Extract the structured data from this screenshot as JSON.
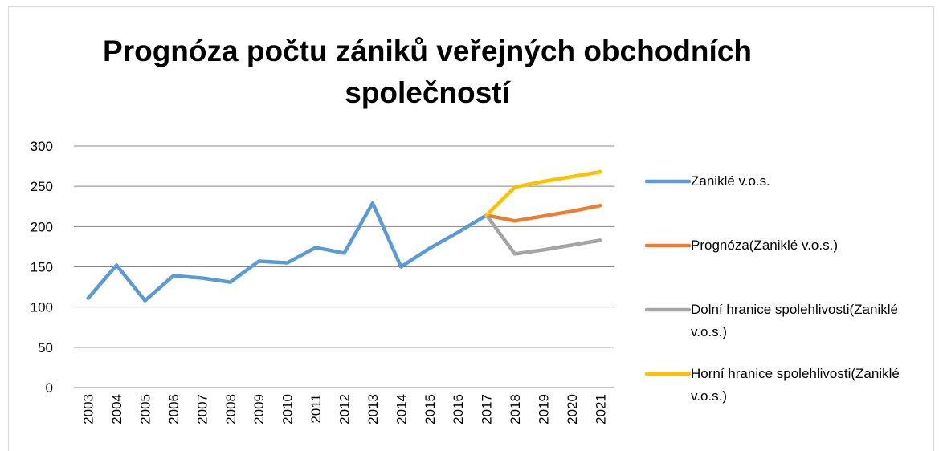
{
  "chart_data": {
    "type": "line",
    "title": "Prognóza počtu zániků veřejných obchodních společností",
    "categories": [
      "2003",
      "2004",
      "2005",
      "2006",
      "2007",
      "2008",
      "2009",
      "2010",
      "2011",
      "2012",
      "2013",
      "2014",
      "2015",
      "2016",
      "2017",
      "2018",
      "2019",
      "2020",
      "2021"
    ],
    "series": [
      {
        "name": "Zaniklé v.o.s.",
        "color": "#5b9bd5",
        "values": [
          111,
          152,
          108,
          139,
          136,
          131,
          157,
          155,
          174,
          167,
          229,
          150,
          173,
          193,
          214,
          null,
          null,
          null,
          null
        ]
      },
      {
        "name": "Prognóza(Zaniklé v.o.s.)",
        "color": "#ed7d31",
        "values": [
          null,
          null,
          null,
          null,
          null,
          null,
          null,
          null,
          null,
          null,
          null,
          null,
          null,
          null,
          214,
          207,
          213,
          219,
          226
        ]
      },
      {
        "name": "Dolní hranice spolehlivosti(Zaniklé v.o.s.)",
        "color": "#a5a5a5",
        "values": [
          null,
          null,
          null,
          null,
          null,
          null,
          null,
          null,
          null,
          null,
          null,
          null,
          null,
          null,
          214,
          166,
          171,
          177,
          183
        ]
      },
      {
        "name": "Horní hranice spolehlivosti(Zaniklé v.o.s.)",
        "color": "#ffc000",
        "values": [
          null,
          null,
          null,
          null,
          null,
          null,
          null,
          null,
          null,
          null,
          null,
          null,
          null,
          null,
          214,
          249,
          256,
          262,
          268
        ]
      }
    ],
    "ylim": [
      0,
      300
    ],
    "yticks": [
      0,
      50,
      100,
      150,
      200,
      250,
      300
    ],
    "grid": true,
    "legend": "right"
  }
}
